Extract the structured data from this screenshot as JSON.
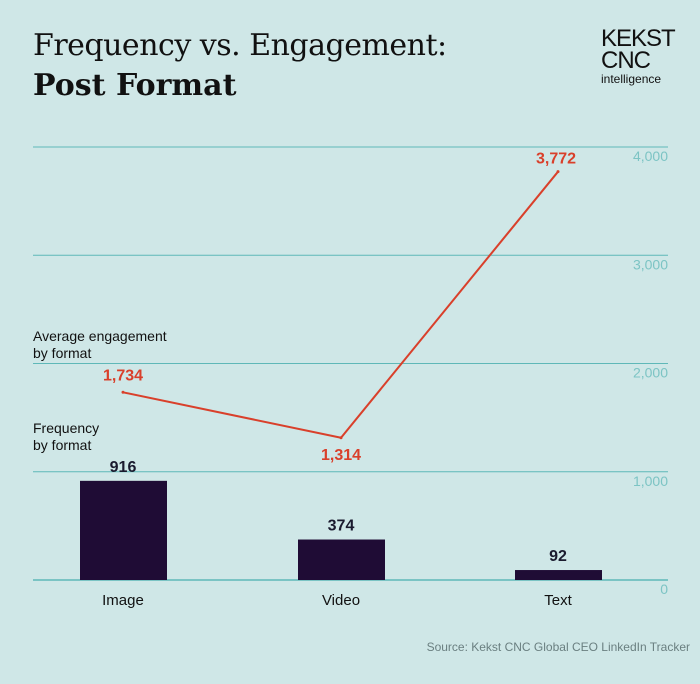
{
  "header": {
    "title_line1": "Frequency vs. Engagement:",
    "title_line2": "Post Format"
  },
  "logo": {
    "line1": "KEKST",
    "line2": "CNC",
    "line3": "intelligence"
  },
  "source": "Source: Kekst CNC Global CEO LinkedIn Tracker",
  "chart_data": {
    "type": "bar+line",
    "title": "Frequency vs. Engagement: Post Format",
    "categories": [
      "Image",
      "Video",
      "Text"
    ],
    "series": [
      {
        "name": "Frequency by format",
        "type": "bar",
        "values": [
          916,
          374,
          92
        ],
        "labels": [
          "916",
          "374",
          "92"
        ],
        "color": "#1f0c35"
      },
      {
        "name": "Average engagement by format",
        "type": "line",
        "values": [
          1734,
          1314,
          3772
        ],
        "labels": [
          "1,734",
          "1,314",
          "3,772"
        ],
        "color": "#d9402b"
      }
    ],
    "legend": {
      "line_label_1": "Average engagement",
      "line_label_2": "by format",
      "bar_label_1": "Frequency",
      "bar_label_2": "by format"
    },
    "ylim": [
      0,
      4000
    ],
    "yticks": [
      0,
      1000,
      2000,
      3000,
      4000
    ],
    "ytick_labels": [
      "0",
      "1,000",
      "2,000",
      "3,000",
      "4,000"
    ],
    "axis_color": "#5fb8b8",
    "grid": true
  }
}
